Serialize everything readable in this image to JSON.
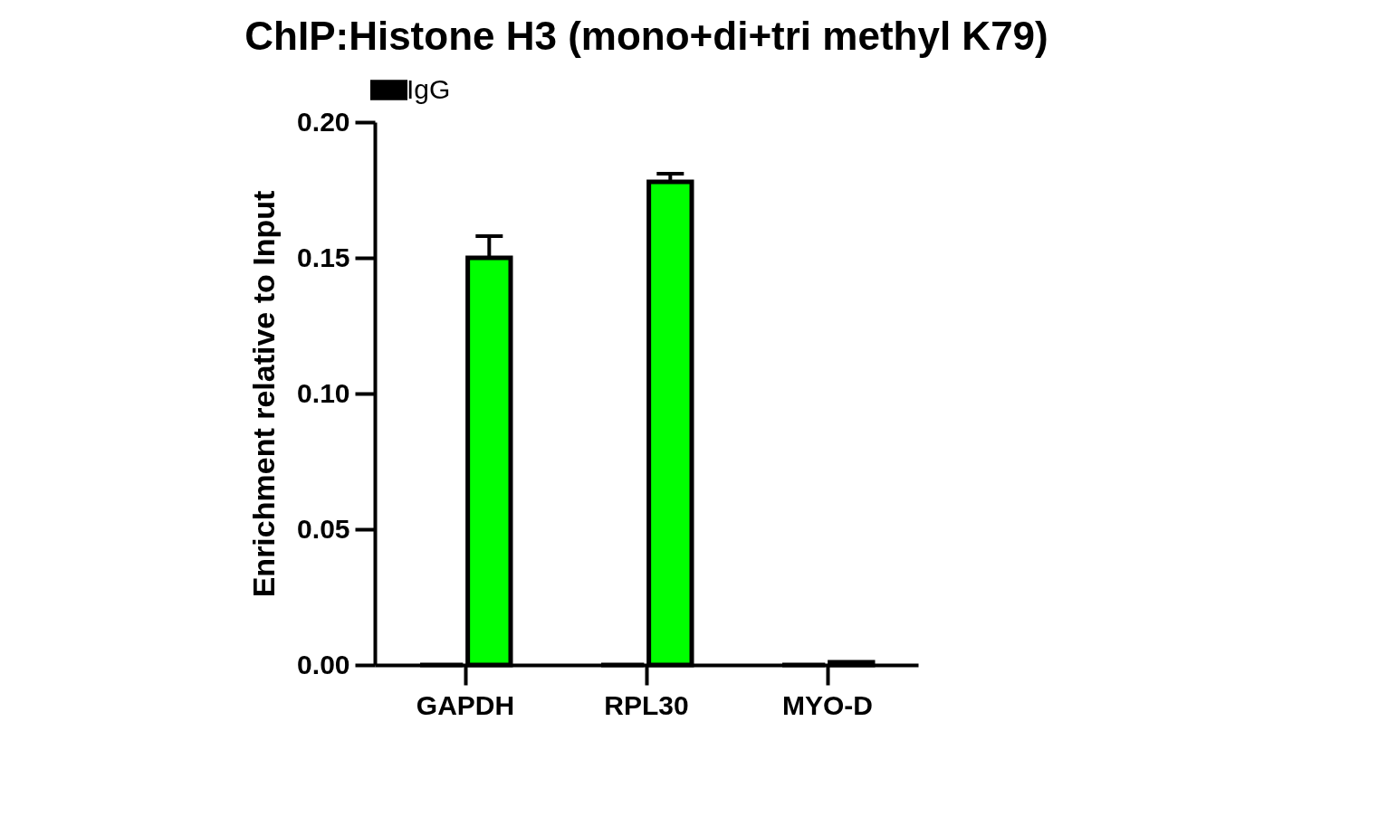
{
  "chart_data": {
    "type": "bar",
    "title": "ChIP:Histone H3 (mono+di+tri methyl K79)",
    "ylabel": "Enrichment relative to Input",
    "categories": [
      "GAPDH",
      "RPL30",
      "MYO-D"
    ],
    "series": [
      {
        "name": "IgG",
        "color": "#000000",
        "values": [
          0,
          0,
          0
        ]
      },
      {
        "color": "#00ff00",
        "values": [
          0.15,
          0.178,
          0.001
        ],
        "errors": [
          0.008,
          0.003,
          null
        ]
      }
    ],
    "ylim": [
      0,
      0.2
    ],
    "yticks": [
      {
        "value": 0,
        "label": "0.00"
      },
      {
        "value": 0.05,
        "label": "0.05"
      },
      {
        "value": 0.1,
        "label": "0.10"
      },
      {
        "value": 0.15,
        "label": "0.15"
      },
      {
        "value": 0.2,
        "label": "0.20"
      }
    ],
    "legend": "top"
  }
}
